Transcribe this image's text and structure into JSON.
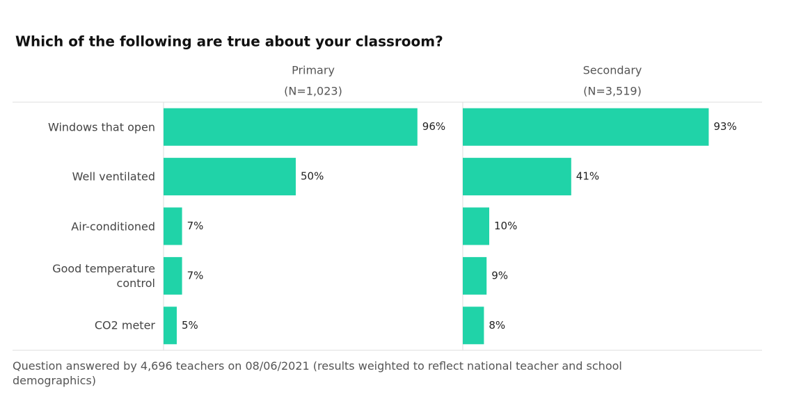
{
  "chart_data": {
    "type": "bar",
    "title": "Which of the following are true about your classroom?",
    "categories": [
      "Windows that open",
      "Well ventilated",
      "Air-conditioned",
      "Good temperature control",
      "CO2 meter"
    ],
    "series": [
      {
        "name": "Primary",
        "sample": "(N=1,023)",
        "color": "#20d3a8",
        "values": [
          96,
          50,
          7,
          7,
          5
        ],
        "value_labels": [
          "96%",
          "50%",
          "7%",
          "7%",
          "5%"
        ]
      },
      {
        "name": "Secondary",
        "sample": "(N=3,519)",
        "color": "#20d3a8",
        "values": [
          93,
          41,
          10,
          9,
          8
        ],
        "value_labels": [
          "93%",
          "41%",
          "10%",
          "9%",
          "8%"
        ]
      }
    ],
    "xlim": [
      0,
      110
    ],
    "footnote": "Question answered by 4,696 teachers on 08/06/2021 (results weighted to reflect national teacher and school demographics)"
  }
}
